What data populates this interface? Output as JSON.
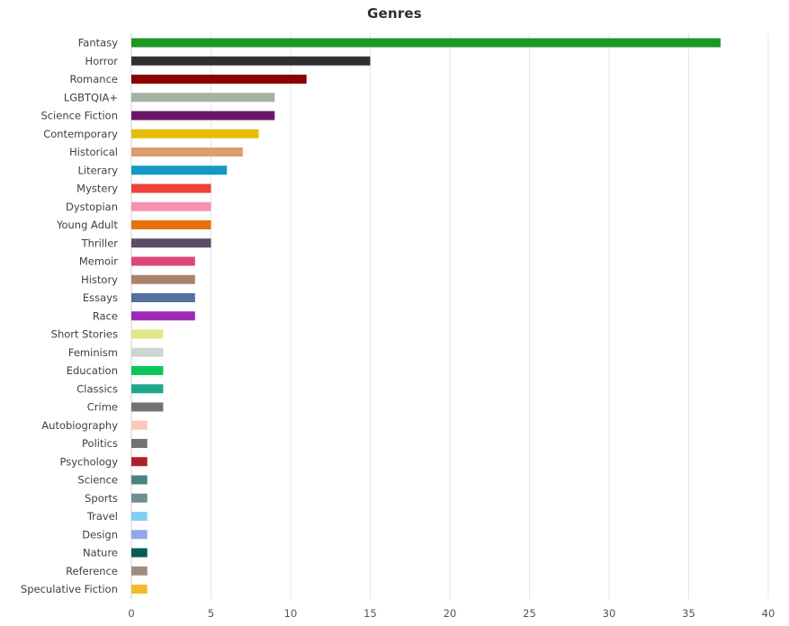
{
  "chart_data": {
    "type": "bar",
    "orientation": "horizontal",
    "title": "Genres",
    "xlabel": "",
    "ylabel": "",
    "xlim": [
      0,
      40
    ],
    "x_ticks": [
      "0",
      "5",
      "10",
      "15",
      "20",
      "25",
      "30",
      "35",
      "40"
    ],
    "grid": true,
    "legend": "none",
    "categories": [
      "Fantasy",
      "Horror",
      "Romance",
      "LGBTQIA+",
      "Science Fiction",
      "Contemporary",
      "Historical",
      "Literary",
      "Mystery",
      "Dystopian",
      "Young Adult",
      "Thriller",
      "Memoir",
      "History",
      "Essays",
      "Race",
      "Short Stories",
      "Feminism",
      "Education",
      "Classics",
      "Crime",
      "Autobiography",
      "Politics",
      "Psychology",
      "Science",
      "Sports",
      "Travel",
      "Design",
      "Nature",
      "Reference",
      "Speculative Fiction"
    ],
    "values": [
      37,
      15,
      11,
      9,
      9,
      8,
      7,
      6,
      5,
      5,
      5,
      5,
      4,
      4,
      4,
      4,
      2,
      2,
      2,
      2,
      2,
      1,
      1,
      1,
      1,
      1,
      1,
      1,
      1,
      1,
      1
    ],
    "colors": [
      "#1e9624",
      "#2f3031",
      "#8b0000",
      "#a3b2a2",
      "#6a1769",
      "#e4bf08",
      "#df9d6e",
      "#1198c3",
      "#f2403a",
      "#f691b2",
      "#e67208",
      "#5f4a68",
      "#df4678",
      "#a78469",
      "#52719f",
      "#9d2ab4",
      "#e3e686",
      "#cdd6d1",
      "#08c957",
      "#1ea98d",
      "#737373",
      "#fbc7bb",
      "#727276",
      "#b01f29",
      "#4d8284",
      "#718e98",
      "#81cff4",
      "#8fa7ee",
      "#045c58",
      "#a38a80",
      "#f5ba29"
    ]
  }
}
